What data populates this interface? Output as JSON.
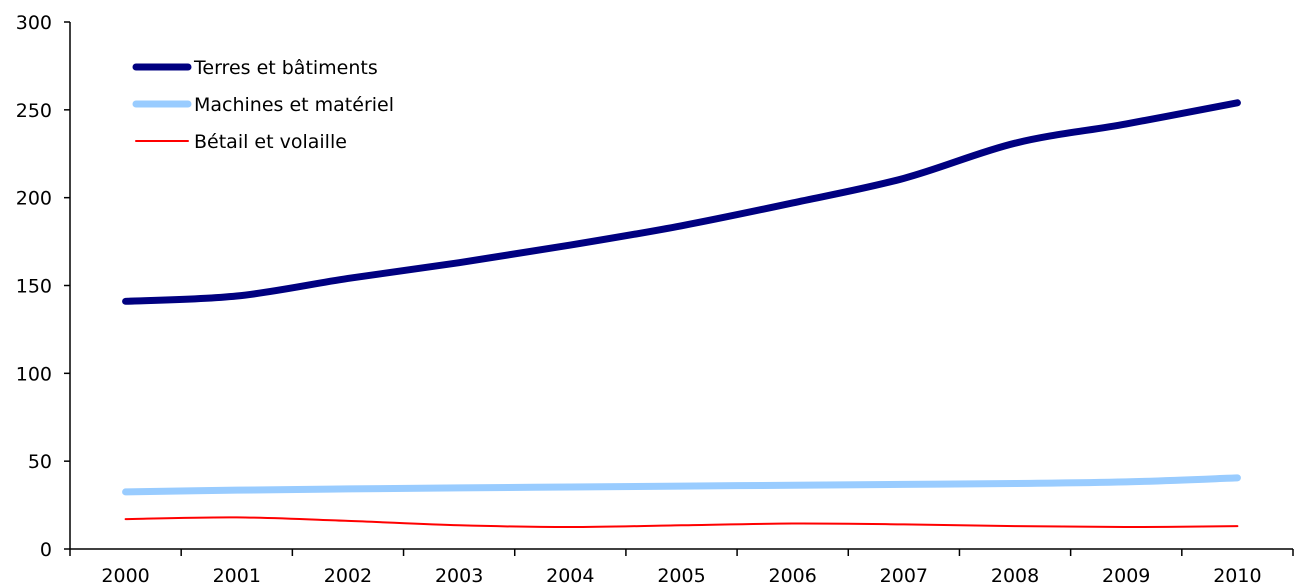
{
  "chart_data": {
    "type": "line",
    "title": "",
    "xlabel": "",
    "ylabel": "",
    "x": [
      "2000",
      "2001",
      "2002",
      "2003",
      "2004",
      "2005",
      "2006",
      "2007",
      "2008",
      "2009",
      "2010"
    ],
    "ylim": [
      0,
      300
    ],
    "yticks": [
      "0",
      "50",
      "100",
      "150",
      "200",
      "250",
      "300"
    ],
    "grid": false,
    "legend_position": "top-left",
    "series": [
      {
        "name": "Terres et bâtiments",
        "color": "#000080",
        "values": [
          141,
          144,
          154,
          163,
          173,
          184,
          197,
          211,
          231,
          242,
          254
        ]
      },
      {
        "name": "Machines et matériel",
        "color": "#99ccff",
        "values": [
          32.5,
          33.5,
          34.2,
          34.8,
          35.3,
          35.8,
          36.3,
          36.8,
          37.3,
          38.2,
          40.5
        ]
      },
      {
        "name": "Bétail et volaille",
        "color": "#ff0000",
        "values": [
          17,
          18,
          16,
          13.5,
          12.5,
          13.5,
          14.5,
          14,
          13,
          12.5,
          13
        ]
      }
    ]
  }
}
